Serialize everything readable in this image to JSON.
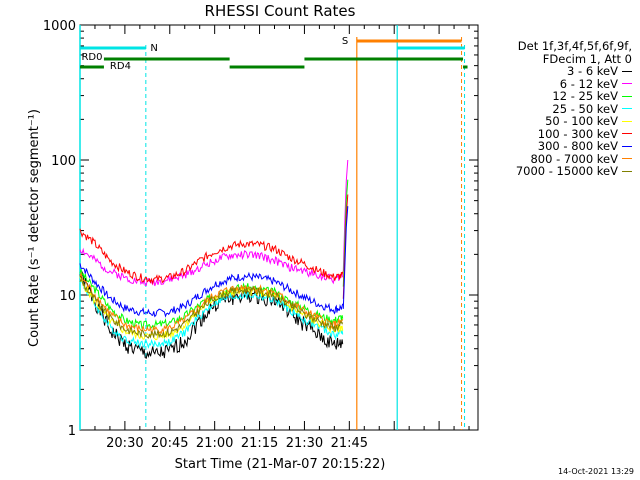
{
  "chart_data": {
    "type": "line",
    "title": "RHESSI Count Rates",
    "xlabel": "Start Time (21-Mar-07 20:15:22)",
    "ylabel": "Count Rate (s⁻¹ detector segment⁻¹)",
    "y_scale": "log",
    "ylim": [
      1,
      1000
    ],
    "y_tick_labels": [
      "1",
      "10",
      "100",
      "1000"
    ],
    "x_range_min": [
      0,
      133
    ],
    "x_tick_labels": [
      "20:30",
      "20:45",
      "21:00",
      "21:15",
      "21:30",
      "21:45"
    ],
    "x_ticks_min": [
      15,
      30,
      45,
      60,
      75,
      90
    ],
    "legend": {
      "header": [
        "Det 1f,3f,4f,5f,6f,9f,",
        "FDecim 1, Att 0"
      ],
      "position": "right"
    },
    "series": [
      {
        "name": "3 - 6 keV",
        "color": "#000000",
        "x": [
          0,
          5,
          10,
          15,
          20,
          25,
          30,
          35,
          40,
          45,
          50,
          55,
          60,
          65,
          70,
          75,
          80,
          85,
          88
        ],
        "y": [
          14,
          9,
          5.5,
          4.3,
          3.8,
          3.6,
          3.8,
          4.6,
          6.5,
          8.5,
          9.5,
          10,
          9.8,
          9.2,
          7.5,
          6,
          5,
          4.2,
          4.5
        ]
      },
      {
        "name": "6 - 12 keV",
        "color": "#ff00ff",
        "x": [
          0,
          5,
          10,
          15,
          20,
          25,
          30,
          35,
          40,
          45,
          50,
          55,
          60,
          65,
          70,
          75,
          80,
          85,
          88
        ],
        "y": [
          22,
          18,
          15,
          13.5,
          12.5,
          12.5,
          13,
          14,
          16,
          18,
          19.5,
          20,
          19.5,
          18,
          16,
          15,
          14,
          13,
          14
        ]
      },
      {
        "name": "12 - 25 keV",
        "color": "#00ff00",
        "x": [
          0,
          5,
          10,
          15,
          20,
          25,
          30,
          35,
          40,
          45,
          50,
          55,
          60,
          65,
          70,
          75,
          80,
          85,
          88
        ],
        "y": [
          15,
          11,
          8,
          6.5,
          6,
          6,
          6.2,
          7,
          8.5,
          10,
          11,
          11.5,
          11,
          10.5,
          9,
          8,
          7,
          6.5,
          7
        ]
      },
      {
        "name": "25 - 50 keV",
        "color": "#00ffff",
        "x": [
          0,
          5,
          10,
          15,
          20,
          25,
          30,
          35,
          40,
          45,
          50,
          55,
          60,
          65,
          70,
          75,
          80,
          85,
          88
        ],
        "y": [
          13,
          8.5,
          5.8,
          4.7,
          4.4,
          4.3,
          4.5,
          5.3,
          7,
          8.8,
          9.6,
          10,
          9.8,
          9.2,
          7.8,
          6.5,
          5.8,
          5,
          5.4
        ]
      },
      {
        "name": "50 - 100 keV",
        "color": "#ffff00",
        "x": [
          0,
          5,
          10,
          15,
          20,
          25,
          30,
          35,
          40,
          45,
          50,
          55,
          60,
          65,
          70,
          75,
          80,
          85,
          88
        ],
        "y": [
          13,
          9,
          6.5,
          5.4,
          5,
          4.9,
          5.1,
          6,
          7.8,
          9.5,
          10.4,
          10.8,
          10.5,
          9.8,
          8.3,
          7,
          6.2,
          5.5,
          5.8
        ]
      },
      {
        "name": "100 - 300 keV",
        "color": "#ff0000",
        "x": [
          0,
          5,
          10,
          15,
          20,
          25,
          30,
          35,
          40,
          45,
          50,
          55,
          60,
          65,
          70,
          75,
          80,
          85,
          88
        ],
        "y": [
          30,
          24,
          18,
          15,
          13.5,
          13,
          13.5,
          15,
          18,
          21,
          23,
          24,
          23.5,
          22,
          19,
          17,
          15,
          13.5,
          14
        ]
      },
      {
        "name": "300 - 800 keV",
        "color": "#0000ff",
        "x": [
          0,
          5,
          10,
          15,
          20,
          25,
          30,
          35,
          40,
          45,
          50,
          55,
          60,
          65,
          70,
          75,
          80,
          85,
          88
        ],
        "y": [
          17,
          12.5,
          9.5,
          8,
          7.5,
          7.3,
          7.5,
          8.3,
          10,
          12,
          13.2,
          13.8,
          13.4,
          12.6,
          11,
          9.6,
          8.5,
          7.8,
          8.2
        ]
      },
      {
        "name": "800 - 7000 keV",
        "color": "#ff8000",
        "x": [
          0,
          5,
          10,
          15,
          20,
          25,
          30,
          35,
          40,
          45,
          50,
          55,
          60,
          65,
          70,
          75,
          80,
          85,
          88
        ],
        "y": [
          14,
          10,
          7.3,
          6,
          5.6,
          5.5,
          5.7,
          6.5,
          8.2,
          10,
          11,
          11.4,
          11.1,
          10.4,
          8.9,
          7.6,
          6.7,
          6,
          6.4
        ]
      },
      {
        "name": "7000 - 15000 keV",
        "color": "#808000",
        "x": [
          0,
          5,
          10,
          15,
          20,
          25,
          30,
          35,
          40,
          45,
          50,
          55,
          60,
          65,
          70,
          75,
          80,
          85,
          88
        ],
        "y": [
          13,
          9.2,
          6.8,
          5.6,
          5.2,
          5.1,
          5.3,
          6.1,
          7.8,
          9.6,
          10.5,
          10.9,
          10.6,
          9.9,
          8.5,
          7.2,
          6.4,
          5.7,
          6.1
        ]
      }
    ],
    "flare_spike": {
      "x": [
        88,
        88.5,
        89,
        89.5
      ],
      "y": [
        15,
        35,
        70,
        100
      ]
    },
    "state_labels": [
      "N",
      "S",
      "RD0",
      "RD4"
    ],
    "datestamp": "14-Oct-2021 13:29"
  }
}
